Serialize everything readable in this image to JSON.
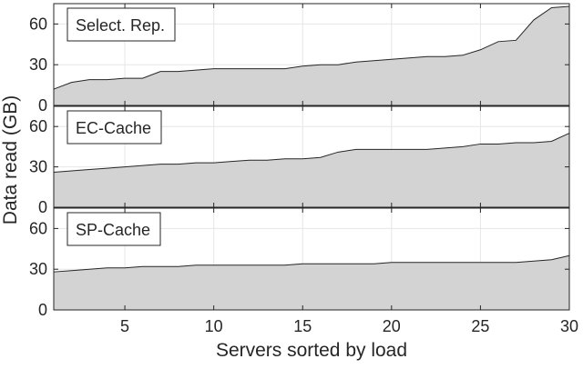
{
  "chart_data": [
    {
      "type": "area",
      "title": "Select. Rep.",
      "x": [
        1,
        2,
        3,
        4,
        5,
        6,
        7,
        8,
        9,
        10,
        11,
        12,
        13,
        14,
        15,
        16,
        17,
        18,
        19,
        20,
        21,
        22,
        23,
        24,
        25,
        26,
        27,
        28,
        29,
        30
      ],
      "series": [
        {
          "name": "Select. Rep.",
          "values": [
            12,
            17,
            19,
            19,
            20,
            20,
            25,
            25,
            26,
            27,
            27,
            27,
            27,
            27,
            29,
            30,
            30,
            32,
            33,
            34,
            35,
            36,
            36,
            37,
            41,
            47,
            48,
            63,
            72,
            73
          ]
        }
      ],
      "xlim": [
        1,
        30
      ],
      "ylim": [
        0,
        75
      ],
      "yticks": [
        0,
        30,
        60
      ],
      "show_xticklabels": false,
      "grid": true
    },
    {
      "type": "area",
      "title": "EC-Cache",
      "x": [
        1,
        2,
        3,
        4,
        5,
        6,
        7,
        8,
        9,
        10,
        11,
        12,
        13,
        14,
        15,
        16,
        17,
        18,
        19,
        20,
        21,
        22,
        23,
        24,
        25,
        26,
        27,
        28,
        29,
        30
      ],
      "series": [
        {
          "name": "EC-Cache",
          "values": [
            26,
            27,
            28,
            29,
            30,
            31,
            32,
            32,
            33,
            33,
            34,
            35,
            35,
            36,
            36,
            37,
            41,
            43,
            43,
            43,
            43,
            43,
            44,
            45,
            47,
            47,
            48,
            48,
            49,
            55
          ]
        }
      ],
      "xlim": [
        1,
        30
      ],
      "ylim": [
        0,
        75
      ],
      "yticks": [
        0,
        30,
        60
      ],
      "show_xticklabels": false,
      "grid": true
    },
    {
      "type": "area",
      "title": "SP-Cache",
      "x": [
        1,
        2,
        3,
        4,
        5,
        6,
        7,
        8,
        9,
        10,
        11,
        12,
        13,
        14,
        15,
        16,
        17,
        18,
        19,
        20,
        21,
        22,
        23,
        24,
        25,
        26,
        27,
        28,
        29,
        30
      ],
      "series": [
        {
          "name": "SP-Cache",
          "values": [
            28,
            29,
            30,
            31,
            31,
            32,
            32,
            32,
            33,
            33,
            33,
            33,
            33,
            33,
            34,
            34,
            34,
            34,
            34,
            35,
            35,
            35,
            35,
            35,
            35,
            35,
            35,
            36,
            37,
            40
          ]
        }
      ],
      "xlim": [
        1,
        30
      ],
      "ylim": [
        0,
        75
      ],
      "yticks": [
        0,
        30,
        60
      ],
      "xticks": [
        5,
        10,
        15,
        20,
        25,
        30
      ],
      "show_xticklabels": true,
      "grid": true
    }
  ],
  "shared": {
    "xlabel": "Servers sorted by load",
    "ylabel": "Data read (GB)",
    "fill_color": "#d3d3d3",
    "line_color": "#262626",
    "grid_color": "#e6e6e6",
    "axis_color": "#262626"
  }
}
